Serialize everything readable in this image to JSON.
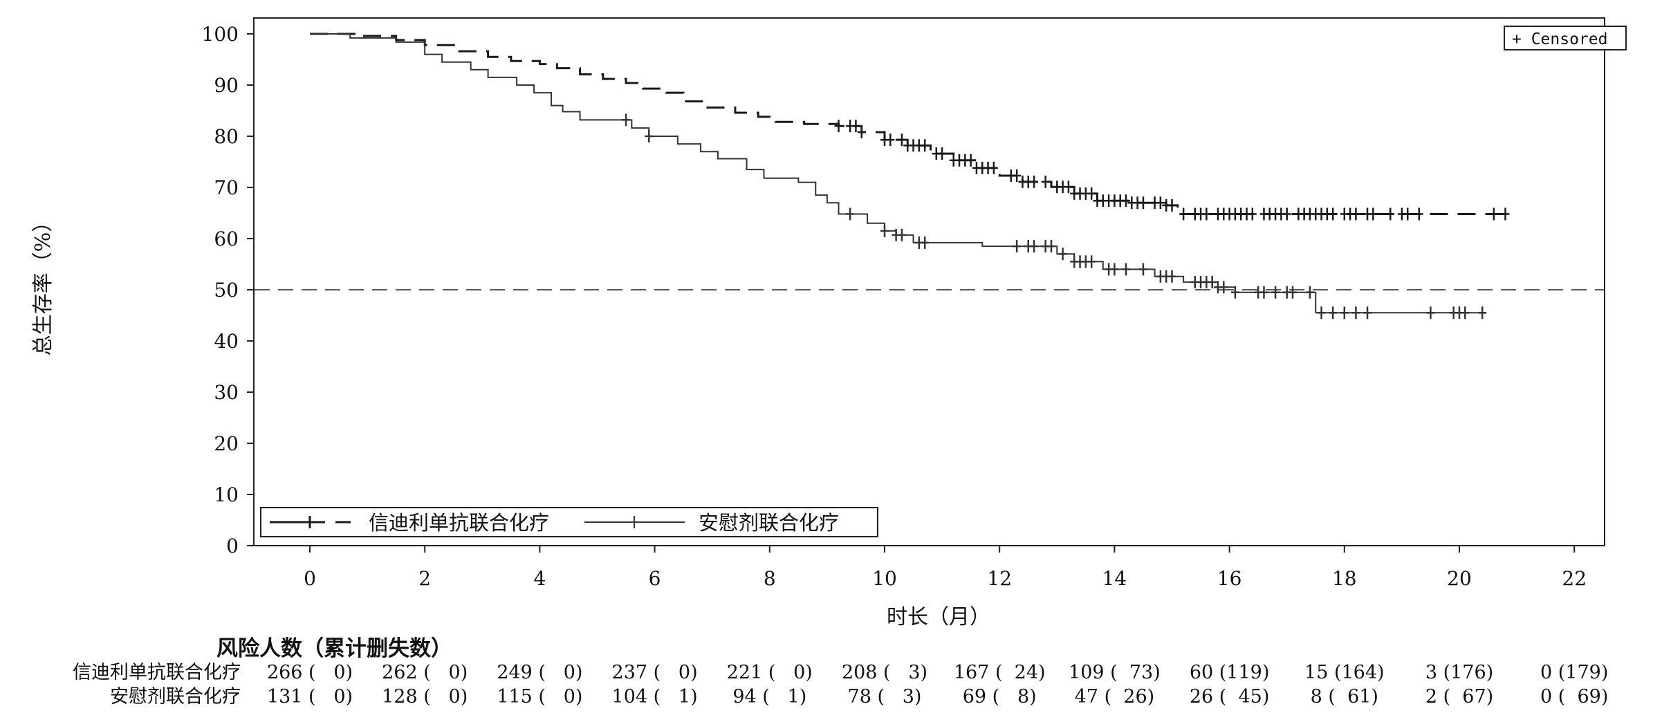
{
  "chart_data": {
    "type": "line",
    "subtype": "kaplan-meier",
    "title": "",
    "xlabel": "时长（月）",
    "ylabel": "总生存率（%）",
    "xlim": [
      -1,
      23
    ],
    "ylim": [
      0,
      102
    ],
    "xticks": [
      0,
      2,
      4,
      6,
      8,
      10,
      12,
      14,
      16,
      18,
      20,
      22
    ],
    "yticks": [
      0,
      10,
      20,
      30,
      40,
      50,
      60,
      70,
      80,
      90,
      100
    ],
    "reference_line": {
      "y": 50,
      "style": "dashed"
    },
    "censor_legend": "+ Censored",
    "legend_position": "bottom-left",
    "series": [
      {
        "name": "信迪利单抗联合化疗",
        "style": "dashed",
        "color": "#1a1a1a",
        "steps": [
          [
            0,
            100
          ],
          [
            0.8,
            99.6
          ],
          [
            1.5,
            98.8
          ],
          [
            2.0,
            97.8
          ],
          [
            2.6,
            96.6
          ],
          [
            3.1,
            95.5
          ],
          [
            3.5,
            94.7
          ],
          [
            4.0,
            94.1
          ],
          [
            4.3,
            93.3
          ],
          [
            4.7,
            92.1
          ],
          [
            5.1,
            91.2
          ],
          [
            5.5,
            90.4
          ],
          [
            5.8,
            89.3
          ],
          [
            6.2,
            88.5
          ],
          [
            6.5,
            86.8
          ],
          [
            6.9,
            85.6
          ],
          [
            7.4,
            84.6
          ],
          [
            7.8,
            83.8
          ],
          [
            8.1,
            82.8
          ],
          [
            8.6,
            82.4
          ],
          [
            9.2,
            82.0
          ],
          [
            9.6,
            80.8
          ],
          [
            10.0,
            79.3
          ],
          [
            10.4,
            78.2
          ],
          [
            10.8,
            76.6
          ],
          [
            11.2,
            75.3
          ],
          [
            11.6,
            73.8
          ],
          [
            12.0,
            72.3
          ],
          [
            12.4,
            71.1
          ],
          [
            12.9,
            70.1
          ],
          [
            13.3,
            68.8
          ],
          [
            13.7,
            67.4
          ],
          [
            14.3,
            67.0
          ],
          [
            14.9,
            66.5
          ],
          [
            15.1,
            64.8
          ],
          [
            20.8,
            64.8
          ]
        ],
        "censored_x": [
          9.2,
          9.4,
          9.5,
          9.6,
          10.0,
          10.1,
          10.3,
          10.4,
          10.5,
          10.6,
          10.7,
          10.9,
          11.0,
          11.2,
          11.3,
          11.4,
          11.5,
          11.6,
          11.7,
          11.8,
          11.9,
          12.2,
          12.3,
          12.4,
          12.5,
          12.6,
          12.8,
          13.0,
          13.1,
          13.2,
          13.3,
          13.4,
          13.5,
          13.6,
          13.7,
          13.8,
          13.9,
          14.0,
          14.1,
          14.2,
          14.3,
          14.4,
          14.5,
          14.7,
          14.8,
          14.9,
          15.0,
          15.2,
          15.4,
          15.5,
          15.6,
          15.8,
          15.9,
          16.0,
          16.1,
          16.2,
          16.3,
          16.4,
          16.6,
          16.7,
          16.8,
          16.9,
          17.0,
          17.2,
          17.3,
          17.4,
          17.5,
          17.6,
          17.7,
          17.8,
          18.0,
          18.1,
          18.2,
          18.4,
          18.5,
          18.8,
          19.0,
          19.1,
          19.3,
          20.6,
          20.8
        ]
      },
      {
        "name": "安慰剂联合化疗",
        "style": "solid",
        "color": "#333333",
        "steps": [
          [
            0,
            100
          ],
          [
            0.7,
            99.2
          ],
          [
            1.5,
            98.4
          ],
          [
            2.0,
            96.0
          ],
          [
            2.3,
            94.5
          ],
          [
            2.8,
            93.0
          ],
          [
            3.1,
            91.5
          ],
          [
            3.6,
            90.0
          ],
          [
            3.9,
            88.5
          ],
          [
            4.2,
            86.0
          ],
          [
            4.4,
            84.8
          ],
          [
            4.7,
            83.2
          ],
          [
            5.6,
            81.6
          ],
          [
            5.9,
            80.0
          ],
          [
            6.4,
            78.5
          ],
          [
            6.8,
            77.0
          ],
          [
            7.1,
            75.6
          ],
          [
            7.6,
            73.5
          ],
          [
            7.9,
            71.8
          ],
          [
            8.5,
            71.0
          ],
          [
            8.8,
            68.5
          ],
          [
            9.0,
            67.0
          ],
          [
            9.2,
            64.8
          ],
          [
            9.7,
            63.0
          ],
          [
            10.0,
            61.5
          ],
          [
            10.2,
            60.7
          ],
          [
            10.5,
            59.2
          ],
          [
            11.7,
            58.5
          ],
          [
            13.0,
            57.0
          ],
          [
            13.3,
            55.5
          ],
          [
            13.8,
            54.0
          ],
          [
            14.7,
            52.6
          ],
          [
            15.2,
            51.5
          ],
          [
            15.8,
            50.5
          ],
          [
            16.1,
            49.5
          ],
          [
            17.5,
            45.5
          ],
          [
            20.4,
            45.5
          ]
        ],
        "censored_x": [
          5.5,
          5.9,
          9.4,
          10.0,
          10.2,
          10.3,
          10.6,
          10.7,
          12.3,
          12.5,
          12.6,
          12.8,
          12.9,
          13.1,
          13.3,
          13.4,
          13.5,
          13.6,
          13.9,
          14.0,
          14.2,
          14.5,
          14.8,
          14.9,
          15.0,
          15.4,
          15.5,
          15.6,
          15.7,
          15.8,
          15.9,
          16.1,
          16.5,
          16.6,
          16.8,
          17.0,
          17.1,
          17.4,
          17.6,
          17.8,
          18.0,
          18.2,
          18.4,
          19.5,
          19.9,
          20.0,
          20.1,
          20.4
        ]
      }
    ]
  },
  "risk_table": {
    "title": "风险人数（累计删失数）",
    "times": [
      0,
      2,
      4,
      6,
      8,
      10,
      12,
      14,
      16,
      18,
      20,
      22
    ],
    "rows": [
      {
        "name": "信迪利单抗联合化疗",
        "cells": [
          "266 (   0)",
          "262 (   0)",
          "249 (   0)",
          "237 (   0)",
          "221 (   0)",
          "208 (   3)",
          "167 (  24)",
          "109 (  73)",
          "60 (119)",
          "15 (164)",
          "3 (176)",
          "0 (179)"
        ]
      },
      {
        "name": "安慰剂联合化疗",
        "cells": [
          "131 (   0)",
          "128 (   0)",
          "115 (   0)",
          "104 (   1)",
          "94 (   1)",
          "78 (   3)",
          "69 (   8)",
          "47 (  26)",
          "26 (  45)",
          "8 (  61)",
          "2 (  67)",
          "0 (  69)"
        ]
      }
    ]
  }
}
